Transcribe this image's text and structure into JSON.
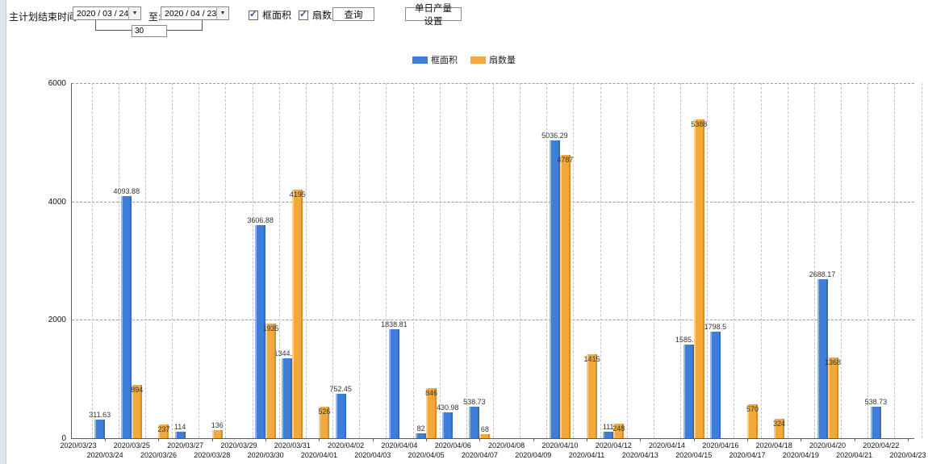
{
  "toolbar": {
    "label_main": "主计划结束时间:",
    "date_from": "2020 / 03 / 24",
    "label_to": "至:",
    "date_to": "2020 / 04 / 23",
    "days_value": "30",
    "query_button": "查询",
    "daily_output_button": "单日产量设置"
  },
  "icons": {
    "dropdown_arrow": "▼",
    "checkmark": "✓"
  },
  "chart_data": {
    "type": "bar",
    "title": "",
    "xlabel": "",
    "ylabel": "",
    "ylim": [
      0,
      6000
    ],
    "yticks": [
      0,
      2000,
      4000,
      6000
    ],
    "grid": true,
    "legend_position": "top-center",
    "value_label_color": "#333333",
    "categories": [
      "2020/03/23",
      "2020/03/24",
      "2020/03/25",
      "2020/03/26",
      "2020/03/27",
      "2020/03/28",
      "2020/03/29",
      "2020/03/30",
      "2020/03/31",
      "2020/04/01",
      "2020/04/02",
      "2020/04/03",
      "2020/04/04",
      "2020/04/05",
      "2020/04/06",
      "2020/04/07",
      "2020/04/08",
      "2020/04/09",
      "2020/04/10",
      "2020/04/11",
      "2020/04/12",
      "2020/04/13",
      "2020/04/14",
      "2020/04/15",
      "2020/04/16",
      "2020/04/17",
      "2020/04/18",
      "2020/04/19",
      "2020/04/20",
      "2020/04/21",
      "2020/04/22",
      "2020/04/23"
    ],
    "series": [
      {
        "name": "框面积",
        "color": "#3f7ed8",
        "values": [
          0,
          311.63,
          4093.88,
          0,
          114,
          0,
          0,
          3606.88,
          1344.95,
          0,
          752.45,
          0,
          1838.81,
          82,
          430.98,
          538.73,
          0,
          0,
          5036.29,
          0,
          111,
          0,
          0,
          1585.96,
          1798.5,
          0,
          0,
          0,
          2688.17,
          0,
          538.73,
          0
        ],
        "labels": [
          "",
          "311.63",
          "4093.88",
          "",
          "114",
          "",
          "",
          "3606.88",
          "1344.95",
          "",
          "752.45",
          "",
          "1838.81",
          "82",
          "430.98",
          "538.73",
          "",
          "",
          "5036.29",
          "",
          "111",
          "",
          "",
          "1585.96",
          "1798.5",
          "",
          "",
          "",
          "2688.17",
          "",
          "538.73",
          ""
        ]
      },
      {
        "name": "扇数量",
        "color": "#f2a939",
        "values": [
          0,
          0,
          894,
          237,
          0,
          136,
          0,
          1935,
          4195,
          526,
          0,
          0,
          0,
          846,
          0,
          68,
          0,
          0,
          4787,
          1415,
          248,
          0,
          0,
          5388,
          0,
          570,
          324,
          0,
          1368,
          0,
          0,
          0
        ],
        "labels": [
          "",
          "",
          "894",
          "237",
          "",
          "136",
          "",
          "1935",
          "4195",
          "526",
          "",
          "",
          "",
          "846",
          "",
          "68",
          "",
          "",
          "4787",
          "1415",
          "248",
          "",
          "",
          "5388",
          "",
          "570",
          "324",
          "",
          "1368",
          "",
          "",
          ""
        ]
      }
    ]
  }
}
